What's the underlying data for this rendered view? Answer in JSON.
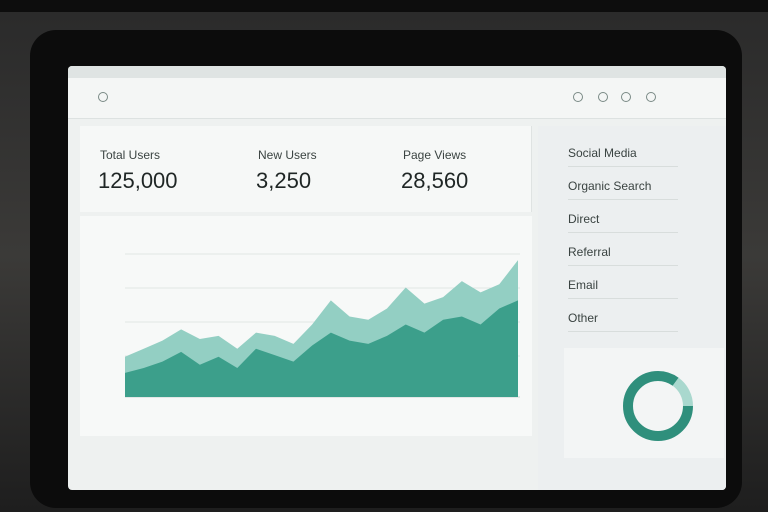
{
  "kpis": [
    {
      "label": "Total Users",
      "value": "125,000"
    },
    {
      "label": "New Users",
      "value": "3,250"
    },
    {
      "label": "Page Views",
      "value": "28,560"
    }
  ],
  "sources": [
    "Social Media",
    "Organic Search",
    "Direct",
    "Referral",
    "Email",
    "Other"
  ],
  "chart_data": {
    "type": "area",
    "ylim": [
      0,
      100
    ],
    "series": [
      {
        "color": "#93cfc3",
        "values": [
          25,
          30,
          35,
          42,
          36,
          38,
          30,
          40,
          38,
          33,
          45,
          60,
          50,
          48,
          55,
          68,
          58,
          62,
          72,
          65,
          70,
          85
        ]
      },
      {
        "color": "#3c9f8b",
        "values": [
          15,
          18,
          22,
          28,
          20,
          25,
          18,
          30,
          26,
          22,
          32,
          40,
          35,
          33,
          38,
          45,
          40,
          48,
          50,
          45,
          55,
          60
        ]
      }
    ]
  }
}
